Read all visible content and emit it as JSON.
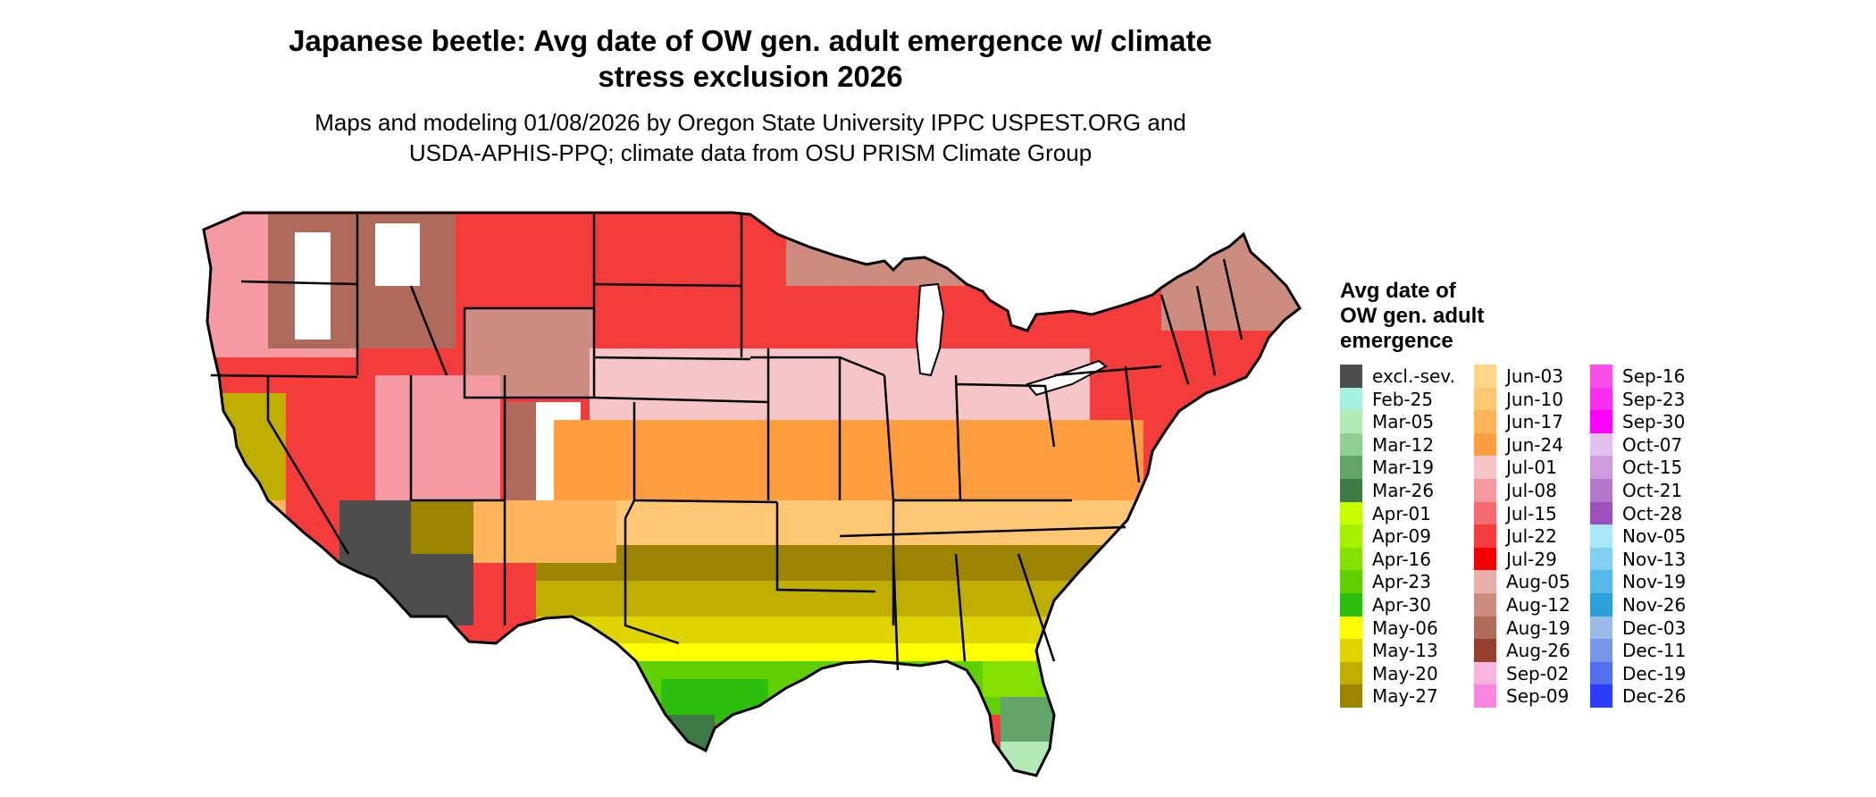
{
  "title_line1": "Japanese beetle: Avg date of OW gen. adult emergence w/ climate",
  "title_line2": "stress exclusion 2026",
  "subtitle_line1": "Maps and modeling 01/08/2026 by Oregon State University IPPC USPEST.ORG and",
  "subtitle_line2": "USDA-APHIS-PPQ; climate data from OSU PRISM Climate Group",
  "legend": {
    "title_lines": [
      "Avg date of",
      "OW gen. adult",
      "emergence"
    ],
    "columns": [
      [
        {
          "label": "excl.-sev.",
          "color": "#4d4d4d"
        },
        {
          "label": "Feb-25",
          "color": "#a6f0df"
        },
        {
          "label": "Mar-05",
          "color": "#b3ebb8"
        },
        {
          "label": "Mar-12",
          "color": "#8fce94"
        },
        {
          "label": "Mar-19",
          "color": "#62a56a"
        },
        {
          "label": "Mar-26",
          "color": "#3e7a45"
        },
        {
          "label": "Apr-01",
          "color": "#c8ff00"
        },
        {
          "label": "Apr-09",
          "color": "#a6f000"
        },
        {
          "label": "Apr-16",
          "color": "#84e000"
        },
        {
          "label": "Apr-23",
          "color": "#5ed000"
        },
        {
          "label": "Apr-30",
          "color": "#2ebe10"
        },
        {
          "label": "May-06",
          "color": "#ffff00"
        },
        {
          "label": "May-13",
          "color": "#ddd400"
        },
        {
          "label": "May-20",
          "color": "#bfae00"
        },
        {
          "label": "May-27",
          "color": "#9c8400"
        }
      ],
      [
        {
          "label": "Jun-03",
          "color": "#ffd68c"
        },
        {
          "label": "Jun-10",
          "color": "#ffc674"
        },
        {
          "label": "Jun-17",
          "color": "#ffb45c"
        },
        {
          "label": "Jun-24",
          "color": "#ff9e40"
        },
        {
          "label": "Jul-01",
          "color": "#f7c4c8"
        },
        {
          "label": "Jul-08",
          "color": "#f49aa0"
        },
        {
          "label": "Jul-15",
          "color": "#f66a70"
        },
        {
          "label": "Jul-22",
          "color": "#f53c3c"
        },
        {
          "label": "Jul-29",
          "color": "#f50000"
        },
        {
          "label": "Aug-05",
          "color": "#e6b0a8"
        },
        {
          "label": "Aug-12",
          "color": "#cc8c80"
        },
        {
          "label": "Aug-19",
          "color": "#b06a5c"
        },
        {
          "label": "Aug-26",
          "color": "#94402c"
        },
        {
          "label": "Sep-02",
          "color": "#f9b4de"
        },
        {
          "label": "Sep-09",
          "color": "#f986e0"
        }
      ],
      [
        {
          "label": "Sep-16",
          "color": "#f850e6"
        },
        {
          "label": "Sep-23",
          "color": "#f82ef0"
        },
        {
          "label": "Sep-30",
          "color": "#ff00ff"
        },
        {
          "label": "Oct-07",
          "color": "#e0c0ec"
        },
        {
          "label": "Oct-15",
          "color": "#cc9cdc"
        },
        {
          "label": "Oct-21",
          "color": "#b478cc"
        },
        {
          "label": "Oct-28",
          "color": "#9c50bc"
        },
        {
          "label": "Nov-05",
          "color": "#a8e8f8"
        },
        {
          "label": "Nov-13",
          "color": "#80d0f0"
        },
        {
          "label": "Nov-19",
          "color": "#54b8e8"
        },
        {
          "label": "Nov-26",
          "color": "#2ea0d8"
        },
        {
          "label": "Dec-03",
          "color": "#9cbce8"
        },
        {
          "label": "Dec-11",
          "color": "#7896e8"
        },
        {
          "label": "Dec-19",
          "color": "#5070f0"
        },
        {
          "label": "Dec-26",
          "color": "#2a3cff"
        }
      ]
    ]
  }
}
